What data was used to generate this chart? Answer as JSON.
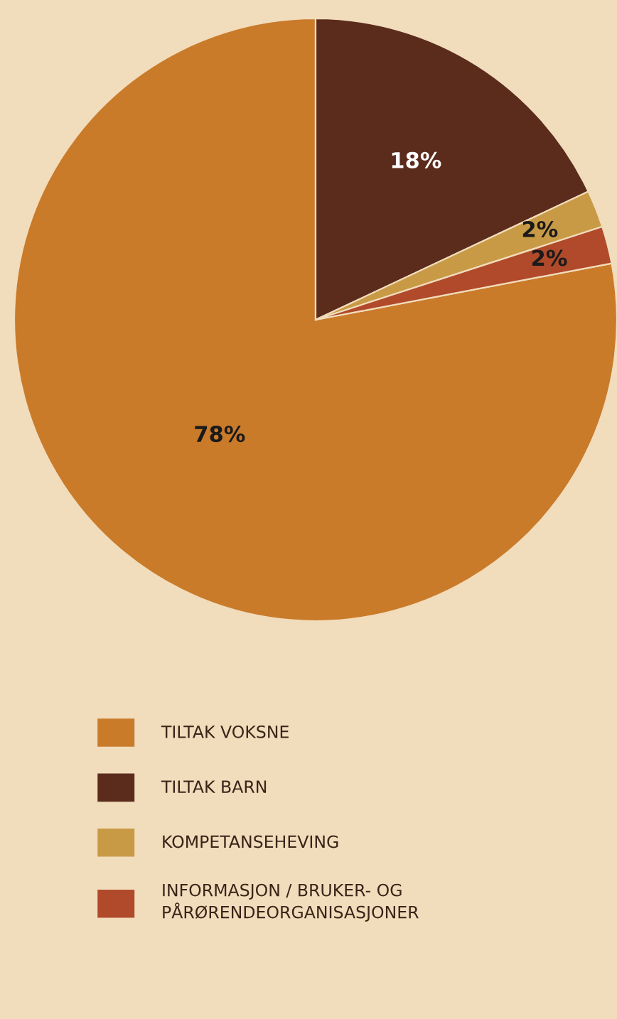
{
  "chart_data": {
    "type": "pie",
    "categories": [
      "TILTAK VOKSNE",
      "TILTAK BARN",
      "KOMPETANSEHEVING",
      "INFORMASJON / BRUKER- OG\nPÅRØRENDEORGANISASJONER"
    ],
    "values": [
      78,
      18,
      2,
      2
    ],
    "colors": [
      "#c97b2a",
      "#5b2c1c",
      "#c99a45",
      "#b04a2a"
    ],
    "value_labels": [
      "78%",
      "18%",
      "2%",
      "2%"
    ],
    "legend": "bottom"
  }
}
